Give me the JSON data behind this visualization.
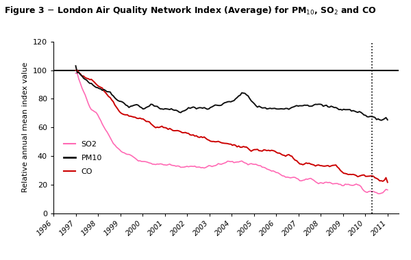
{
  "title_parts": [
    "Figure 3 – London Air Quality Network Index (Average) for PM",
    "10",
    ", SO",
    "2",
    " and CO"
  ],
  "ylabel": "Relative annual mean index value",
  "xlim": [
    1996,
    2011.5
  ],
  "ylim": [
    0,
    120
  ],
  "yticks": [
    0,
    20,
    40,
    60,
    80,
    100,
    120
  ],
  "xtick_years": [
    1996,
    1997,
    1998,
    1999,
    2000,
    2001,
    2002,
    2003,
    2004,
    2005,
    2006,
    2007,
    2008,
    2009,
    2010,
    2011
  ],
  "reference_line_y": 100,
  "dotted_line_x": 2010.3,
  "colors": {
    "SO2": "#ff69b4",
    "PM10": "#111111",
    "CO": "#cc0000",
    "reference": "#111111"
  },
  "background": "#ffffff",
  "pm10_x": [
    1997,
    1997.3,
    1997.7,
    1998,
    1998.3,
    1998.6,
    1999,
    1999.3,
    1999.6,
    2000,
    2000.3,
    2000.6,
    2001,
    2001.3,
    2001.6,
    2002,
    2002.3,
    2002.6,
    2003,
    2003.3,
    2003.6,
    2004,
    2004.3,
    2004.6,
    2005,
    2005.3,
    2005.6,
    2006,
    2006.3,
    2006.6,
    2007,
    2007.3,
    2007.6,
    2008,
    2008.3,
    2008.6,
    2009,
    2009.3,
    2009.6,
    2010,
    2010.3,
    2010.6,
    2011
  ],
  "pm10_y": [
    100,
    96,
    90,
    88,
    86,
    83,
    79,
    76,
    75,
    74,
    75,
    74,
    73,
    73,
    72,
    72,
    73,
    74,
    73,
    74,
    76,
    78,
    82,
    84,
    76,
    74,
    73,
    72,
    74,
    75,
    76,
    77,
    76,
    75,
    74,
    74,
    73,
    72,
    71,
    69,
    67,
    66,
    65
  ],
  "so2_x": [
    1997,
    1997.2,
    1997.4,
    1997.6,
    1997.8,
    1998,
    1998.3,
    1998.6,
    1999,
    1999.4,
    1999.8,
    2000,
    2000.4,
    2000.8,
    2001,
    2001.4,
    2001.8,
    2002,
    2002.4,
    2002.8,
    2003,
    2003.4,
    2003.8,
    2004,
    2004.4,
    2004.8,
    2005,
    2005.4,
    2005.8,
    2006,
    2006.4,
    2006.8,
    2007,
    2007.4,
    2007.8,
    2008,
    2008.4,
    2008.8,
    2009,
    2009.4,
    2009.8,
    2010,
    2010.3,
    2010.6,
    2011
  ],
  "so2_y": [
    100,
    90,
    82,
    73,
    72,
    68,
    58,
    50,
    43,
    40,
    37,
    36,
    35,
    34,
    34,
    33,
    32,
    32,
    33,
    33,
    33,
    34,
    35,
    36,
    36,
    35,
    34,
    32,
    30,
    28,
    26,
    25,
    24,
    23,
    22,
    22,
    21,
    21,
    20,
    20,
    19,
    16,
    15,
    14,
    15
  ],
  "co_x": [
    1997,
    1997.2,
    1997.4,
    1997.6,
    1997.8,
    1998,
    1998.3,
    1998.6,
    1999,
    1999.3,
    1999.6,
    2000,
    2000.3,
    2000.6,
    2001,
    2001.3,
    2001.6,
    2002,
    2002.3,
    2002.6,
    2003,
    2003.3,
    2003.6,
    2004,
    2004.3,
    2004.6,
    2005,
    2005.3,
    2005.6,
    2006,
    2006.3,
    2006.6,
    2007,
    2007.3,
    2007.6,
    2008,
    2008.3,
    2008.6,
    2009,
    2009.3,
    2009.6,
    2010,
    2010.3,
    2010.6,
    2011
  ],
  "co_y": [
    100,
    97,
    95,
    93,
    92,
    89,
    86,
    80,
    70,
    68,
    67,
    65,
    63,
    61,
    60,
    59,
    57,
    56,
    54,
    53,
    51,
    50,
    49,
    48,
    47,
    46,
    45,
    45,
    44,
    42,
    41,
    41,
    35,
    35,
    34,
    34,
    33,
    33,
    27,
    27,
    26,
    25,
    25,
    23,
    22
  ]
}
